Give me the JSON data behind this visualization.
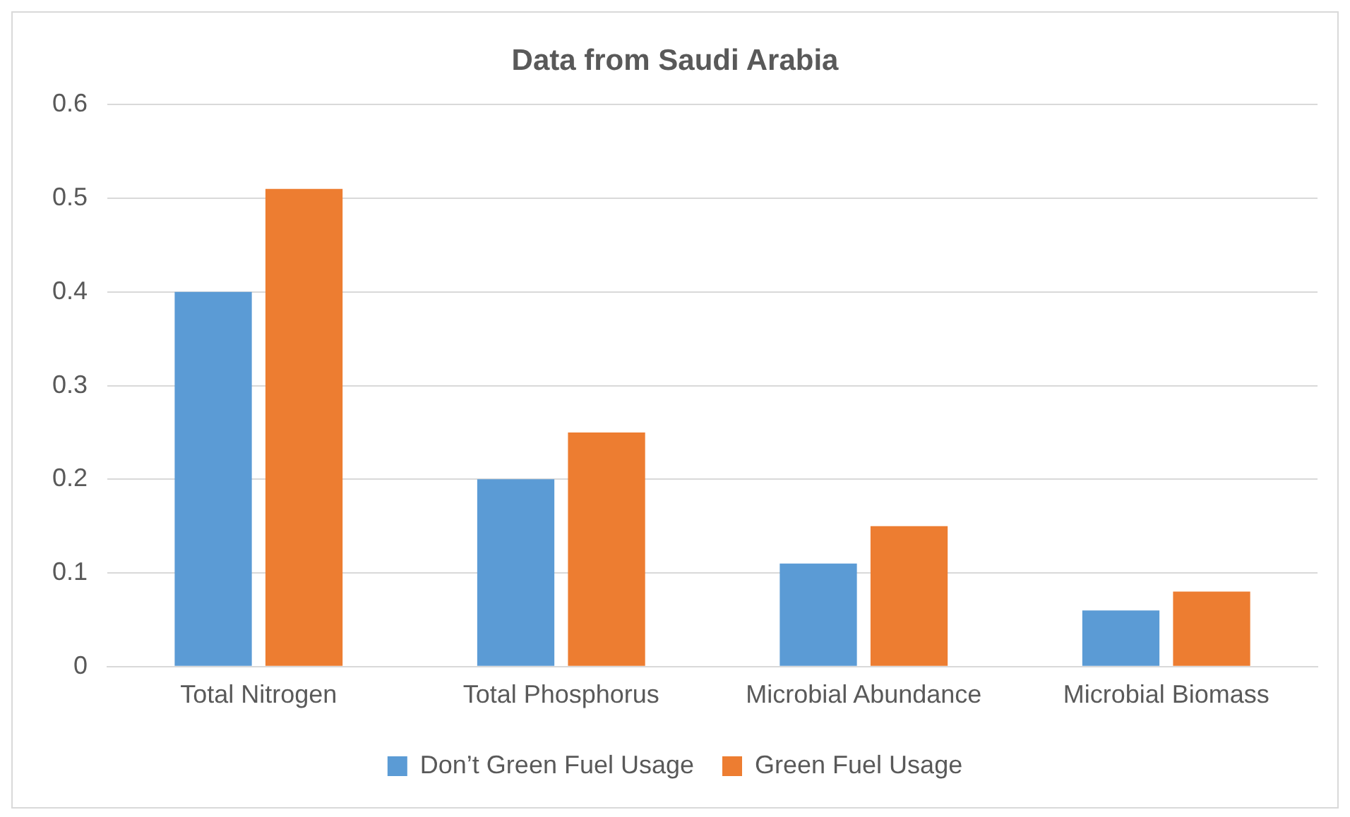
{
  "chart_data": {
    "type": "bar",
    "title": "Data from Saudi Arabia",
    "categories": [
      "Total Nitrogen",
      "Total Phosphorus",
      "Microbial Abundance",
      "Microbial Biomass"
    ],
    "series": [
      {
        "name": "Don’t Green Fuel Usage",
        "color": "#5b9bd5",
        "values": [
          0.4,
          0.2,
          0.11,
          0.06
        ]
      },
      {
        "name": "Green Fuel Usage",
        "color": "#ed7d31",
        "values": [
          0.51,
          0.25,
          0.15,
          0.08
        ]
      }
    ],
    "ylim": [
      0,
      0.6
    ],
    "yticks": [
      0,
      0.1,
      0.2,
      0.3,
      0.4,
      0.5,
      0.6
    ],
    "grid": "y",
    "legend": "bottom"
  }
}
